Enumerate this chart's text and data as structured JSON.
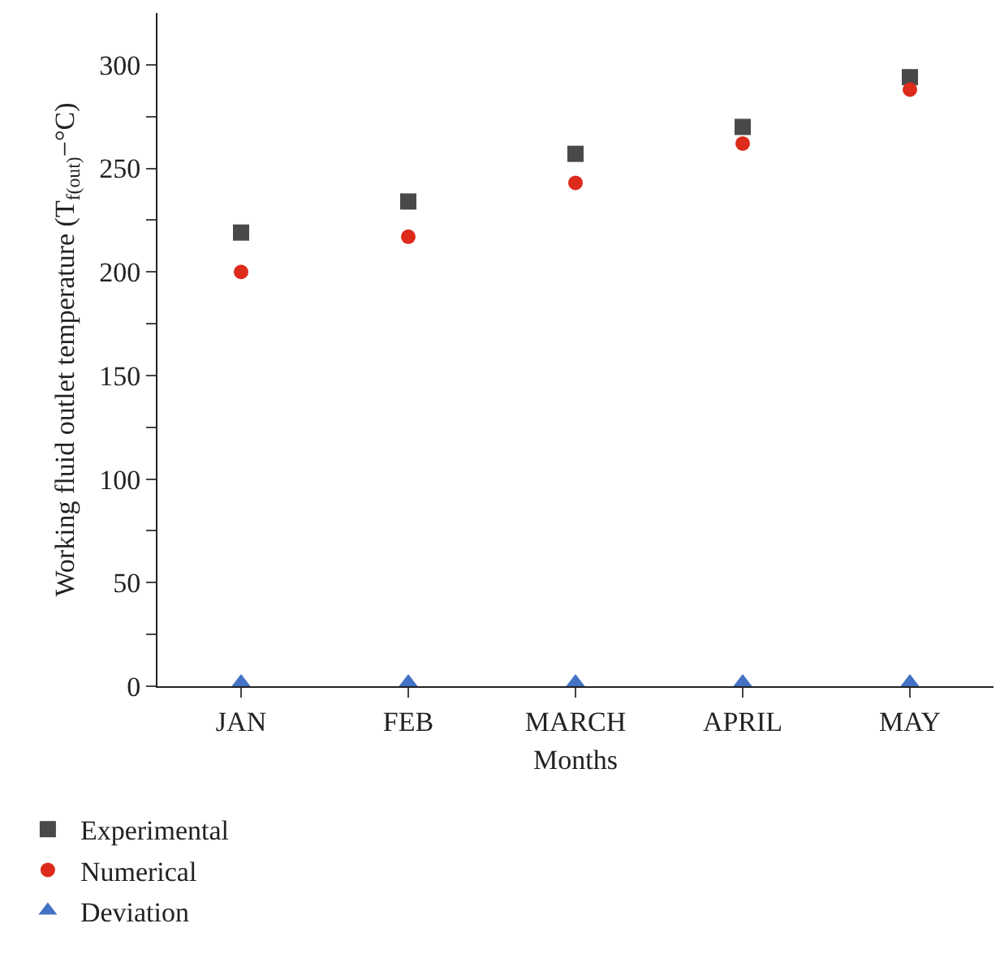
{
  "chart_data": {
    "type": "scatter",
    "xlabel": "Months",
    "ylabel": "Working fluid outlet temperature (T$_{f(out)}$−°C)",
    "categories": [
      "JAN",
      "FEB",
      "MARCH",
      "APRIL",
      "MAY"
    ],
    "series": [
      {
        "name": "Experimental",
        "color": "#4a4849",
        "marker": "square",
        "values": [
          219,
          234,
          257,
          270,
          294
        ]
      },
      {
        "name": "Numerical",
        "color": "#dd2a1b",
        "marker": "circle",
        "values": [
          200,
          217,
          243,
          262,
          288
        ]
      },
      {
        "name": "Deviation",
        "color": "#4472c4",
        "marker": "triangle",
        "values": [
          2,
          2,
          2,
          2,
          2
        ]
      }
    ],
    "ylim": [
      0,
      325
    ],
    "yticks": [
      0,
      {
        "value": 25,
        "label": null
      },
      50,
      {
        "value": 75,
        "label": null
      },
      100,
      {
        "value": 125,
        "label": null
      },
      150,
      {
        "value": 175,
        "label": null
      },
      200,
      {
        "value": 225,
        "label": null
      },
      250,
      {
        "value": 275,
        "label": null
      },
      300
    ],
    "grid": false,
    "legend": "bottom left"
  }
}
